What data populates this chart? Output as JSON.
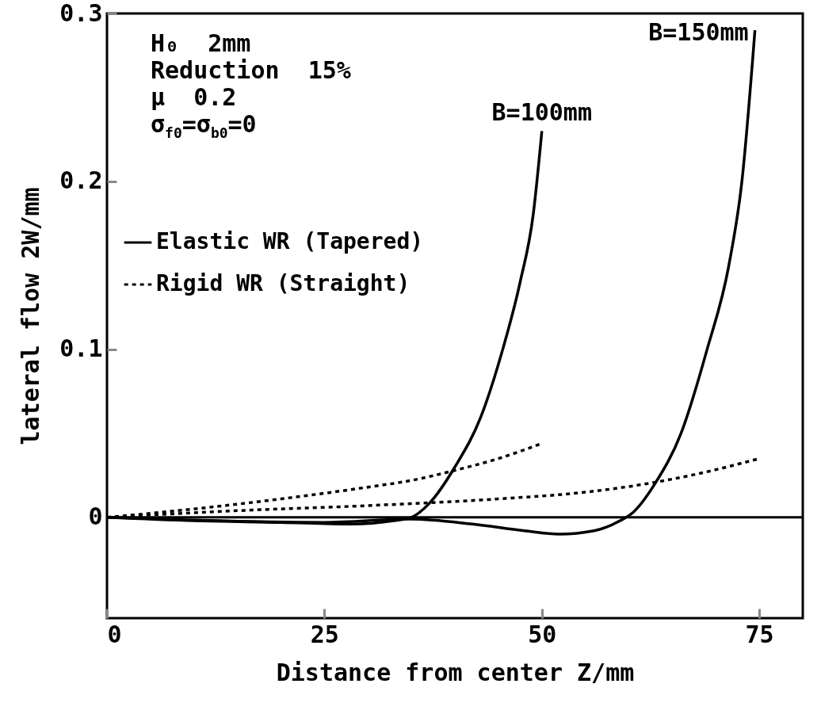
{
  "chart_data": {
    "type": "line",
    "xlabel": "Distance from center  Z/mm",
    "ylabel": "lateral flow  2W/mm",
    "xlim": [
      0,
      80
    ],
    "xticks": [
      0,
      25,
      50,
      75
    ],
    "ylim": [
      -0.06,
      0.3
    ],
    "yticks": [
      0,
      0.1,
      0.2,
      0.3
    ],
    "grid": false,
    "legend": "left",
    "ref_lines": [
      {
        "axis": "y",
        "value": 0,
        "color": "#000000",
        "line_style": "solid"
      }
    ],
    "annotations": [
      "H₀  2mm",
      "Reduction  15%",
      "μ  0.2",
      "σ$_{f0}$=σ$_{b0}$=0",
      {
        "text": "B=100mm",
        "x": 50,
        "y": 0.23
      },
      {
        "text": "B=150mm",
        "x": 74.5,
        "y": 0.29
      }
    ],
    "series": [
      {
        "name": "Elastic WR (Tapered)",
        "color": "#000000",
        "line_style": "solid",
        "x": [
          0,
          10,
          20,
          28,
          33,
          35,
          37,
          40,
          43,
          45.5,
          47.5,
          49,
          50
        ],
        "values": [
          0,
          -0.002,
          -0.003,
          -0.004,
          -0.002,
          0,
          0.008,
          0.03,
          0.06,
          0.1,
          0.14,
          0.18,
          0.23
        ]
      },
      {
        "color": "#000000",
        "line_style": "solid",
        "x": [
          0,
          25,
          35,
          42,
          48,
          52,
          56,
          59,
          60.5,
          63,
          66,
          69,
          71.5,
          73,
          74.5
        ],
        "values": [
          0,
          -0.003,
          -0.001,
          -0.004,
          -0.008,
          -0.01,
          -0.008,
          -0.002,
          0.003,
          0.02,
          0.05,
          0.1,
          0.15,
          0.2,
          0.29
        ]
      },
      {
        "name": "Rigid WR (Straight)",
        "color": "#000000",
        "line_style": "dotted",
        "x": [
          0,
          10,
          20,
          30,
          35,
          40,
          45,
          50
        ],
        "values": [
          0,
          0.005,
          0.011,
          0.018,
          0.022,
          0.028,
          0.035,
          0.044
        ]
      },
      {
        "color": "#000000",
        "line_style": "dotted",
        "x": [
          0,
          15,
          30,
          45,
          55,
          62,
          68,
          75
        ],
        "values": [
          0,
          0.004,
          0.007,
          0.011,
          0.015,
          0.02,
          0.026,
          0.035
        ]
      }
    ]
  }
}
